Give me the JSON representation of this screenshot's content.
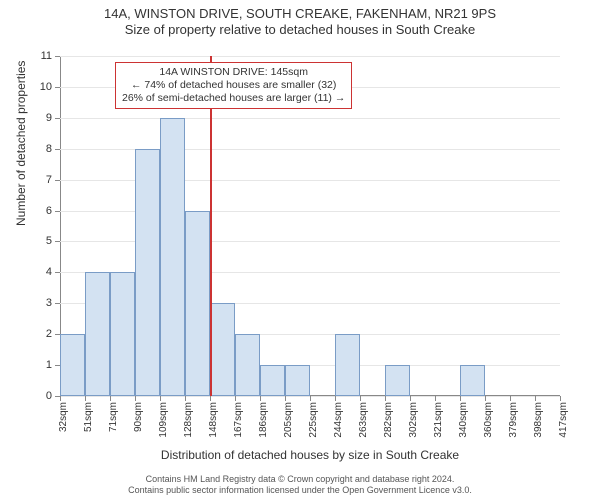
{
  "title": {
    "line1": "14A, WINSTON DRIVE, SOUTH CREAKE, FAKENHAM, NR21 9PS",
    "line2": "Size of property relative to detached houses in South Creake",
    "fontsize": 13
  },
  "chart": {
    "type": "histogram",
    "x_tick_labels": [
      "32sqm",
      "51sqm",
      "71sqm",
      "90sqm",
      "109sqm",
      "128sqm",
      "148sqm",
      "167sqm",
      "186sqm",
      "205sqm",
      "225sqm",
      "244sqm",
      "263sqm",
      "282sqm",
      "302sqm",
      "321sqm",
      "340sqm",
      "360sqm",
      "379sqm",
      "398sqm",
      "417sqm"
    ],
    "values": [
      2,
      4,
      4,
      8,
      9,
      6,
      3,
      2,
      1,
      1,
      0,
      2,
      0,
      1,
      0,
      0,
      1,
      0,
      0,
      0
    ],
    "bar_fill_color": "#d3e2f2",
    "bar_border_color": "#7a9cc6",
    "background_color": "#ffffff",
    "grid_color": "#e6e6e6",
    "axis_color": "#888888",
    "ylim": [
      0,
      11
    ],
    "yticks": [
      0,
      1,
      2,
      3,
      4,
      5,
      6,
      7,
      8,
      9,
      10,
      11
    ],
    "reference_line": {
      "bin_index_start": 6,
      "color": "#cc3333"
    },
    "annotation": {
      "line1": "14A WINSTON DRIVE: 145sqm",
      "line2": "← 74% of detached houses are smaller (32)",
      "line3": "26% of semi-detached houses are larger (11) →",
      "border_color": "#cc3333"
    },
    "y_axis_title": "Number of detached properties",
    "x_axis_title": "Distribution of detached houses by size in South Creake",
    "label_fontsize": 12,
    "tick_fontsize": 10
  },
  "footnote": {
    "line1": "Contains HM Land Registry data © Crown copyright and database right 2024.",
    "line2": "Contains public sector information licensed under the Open Government Licence v3.0."
  }
}
